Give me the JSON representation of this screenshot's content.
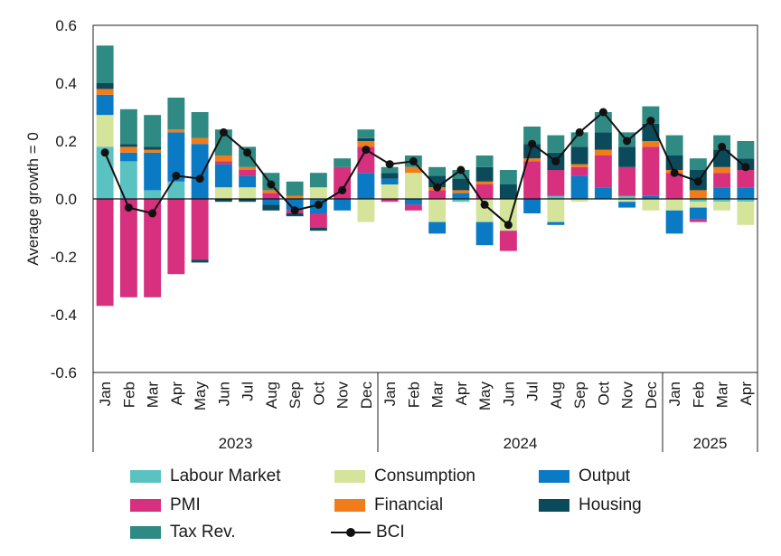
{
  "chart_data": {
    "type": "bar",
    "subtype": "stacked_bar_with_line",
    "ylabel": "Average growth = 0",
    "ylim": [
      -0.6,
      0.6
    ],
    "yticks": [
      "0.6",
      "0.4",
      "0.2",
      "0.0",
      "-0.2",
      "-0.4",
      "-0.6"
    ],
    "categories": [
      "Jan",
      "Feb",
      "Mar",
      "Apr",
      "May",
      "Jun",
      "Jul",
      "Aug",
      "Sep",
      "Oct",
      "Nov",
      "Dec",
      "Jan",
      "Feb",
      "Mar",
      "Apr",
      "May",
      "Jun",
      "Jul",
      "Aug",
      "Sep",
      "Oct",
      "Nov",
      "Dec",
      "Jan",
      "Feb",
      "Mar",
      "Apr"
    ],
    "years": [
      {
        "label": "2023",
        "start": 0,
        "end": 11
      },
      {
        "label": "2024",
        "start": 12,
        "end": 23
      },
      {
        "label": "2025",
        "start": 24,
        "end": 27
      }
    ],
    "series": [
      {
        "name": "Labour Market",
        "color": "#5bc2c2",
        "values": [
          0.18,
          0.13,
          0.03,
          0.06,
          0.0,
          0.0,
          0.0,
          0.0,
          0.0,
          0.0,
          0.0,
          0.0,
          0.0,
          0.0,
          0.0,
          -0.01,
          0.0,
          0.0,
          0.0,
          0.01,
          0.0,
          0.0,
          0.01,
          0.0,
          0.0,
          -0.01,
          -0.01,
          -0.01
        ]
      },
      {
        "name": "Consumption",
        "color": "#d4e49a",
        "values": [
          0.11,
          0.0,
          0.0,
          0.0,
          0.0,
          0.04,
          0.04,
          0.0,
          0.0,
          0.04,
          0.0,
          -0.08,
          0.05,
          0.09,
          -0.08,
          0.0,
          -0.08,
          -0.11,
          0.0,
          -0.08,
          -0.01,
          0.0,
          -0.01,
          -0.04,
          -0.04,
          -0.02,
          -0.03,
          -0.08
        ]
      },
      {
        "name": "Output",
        "color": "#0a7ac4",
        "values": [
          0.07,
          0.03,
          0.13,
          0.17,
          0.19,
          0.08,
          0.04,
          -0.02,
          -0.04,
          -0.05,
          -0.04,
          0.09,
          0.02,
          -0.02,
          -0.04,
          0.02,
          -0.08,
          0.0,
          -0.05,
          -0.01,
          0.08,
          0.04,
          -0.02,
          0.01,
          -0.08,
          -0.04,
          0.04,
          0.04
        ]
      },
      {
        "name": "PMI",
        "color": "#d6307f",
        "values": [
          -0.37,
          -0.34,
          -0.34,
          -0.26,
          -0.21,
          0.01,
          0.02,
          0.02,
          -0.01,
          -0.05,
          0.11,
          0.09,
          -0.01,
          -0.02,
          0.03,
          0.0,
          0.05,
          -0.07,
          0.13,
          0.09,
          0.03,
          0.11,
          0.1,
          0.17,
          0.09,
          -0.01,
          0.05,
          0.06
        ]
      },
      {
        "name": "Financial",
        "color": "#f07d1a",
        "values": [
          0.02,
          0.02,
          0.01,
          0.01,
          0.02,
          0.02,
          0.01,
          0.01,
          0.01,
          0.0,
          0.0,
          0.02,
          0.0,
          0.02,
          0.01,
          0.01,
          0.01,
          0.0,
          0.01,
          0.0,
          0.01,
          0.02,
          0.0,
          0.02,
          0.01,
          0.03,
          0.02,
          0.0
        ]
      },
      {
        "name": "Housing",
        "color": "#0b4a5a",
        "values": [
          0.02,
          0.01,
          0.01,
          0.0,
          -0.01,
          -0.01,
          -0.01,
          -0.02,
          -0.01,
          -0.01,
          0.0,
          0.01,
          0.02,
          0.0,
          0.04,
          0.04,
          0.05,
          0.05,
          0.05,
          0.06,
          0.06,
          0.06,
          0.07,
          0.06,
          0.05,
          0.07,
          0.06,
          0.04
        ]
      },
      {
        "name": "Tax Rev.",
        "color": "#2e8a82",
        "values": [
          0.13,
          0.12,
          0.11,
          0.11,
          0.09,
          0.09,
          0.07,
          0.06,
          0.05,
          0.05,
          0.03,
          0.03,
          0.02,
          0.04,
          0.03,
          0.03,
          0.04,
          0.05,
          0.06,
          0.06,
          0.05,
          0.07,
          0.05,
          0.06,
          0.07,
          0.04,
          0.05,
          0.06
        ]
      }
    ],
    "line": {
      "name": "BCI",
      "color": "#111111",
      "values": [
        0.16,
        -0.03,
        -0.05,
        0.08,
        0.07,
        0.23,
        0.16,
        0.05,
        -0.04,
        -0.02,
        0.03,
        0.17,
        0.12,
        0.13,
        0.04,
        0.1,
        -0.02,
        -0.09,
        0.19,
        0.13,
        0.23,
        0.3,
        0.2,
        0.27,
        0.09,
        0.06,
        0.18,
        0.11
      ]
    },
    "legend_position": "bottom"
  }
}
